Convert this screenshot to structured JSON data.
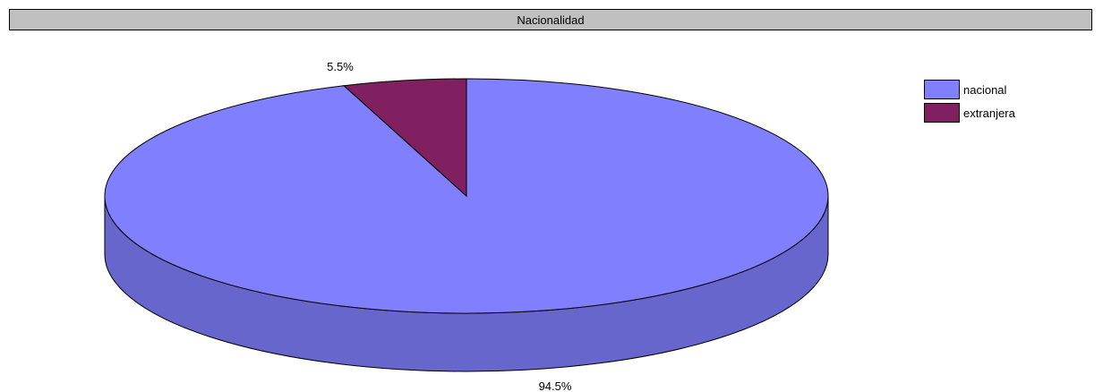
{
  "chart_data": {
    "type": "pie",
    "title": "Nacionalidad",
    "categories": [
      "nacional",
      "extranjera"
    ],
    "values": [
      94.5,
      5.5
    ],
    "value_labels": [
      "94.5%",
      "5.5%"
    ],
    "colors": [
      "#8080ff",
      "#802060"
    ],
    "side_colors": [
      "#6666cc",
      "#601848"
    ],
    "legend_position": "right",
    "three_d": true
  }
}
